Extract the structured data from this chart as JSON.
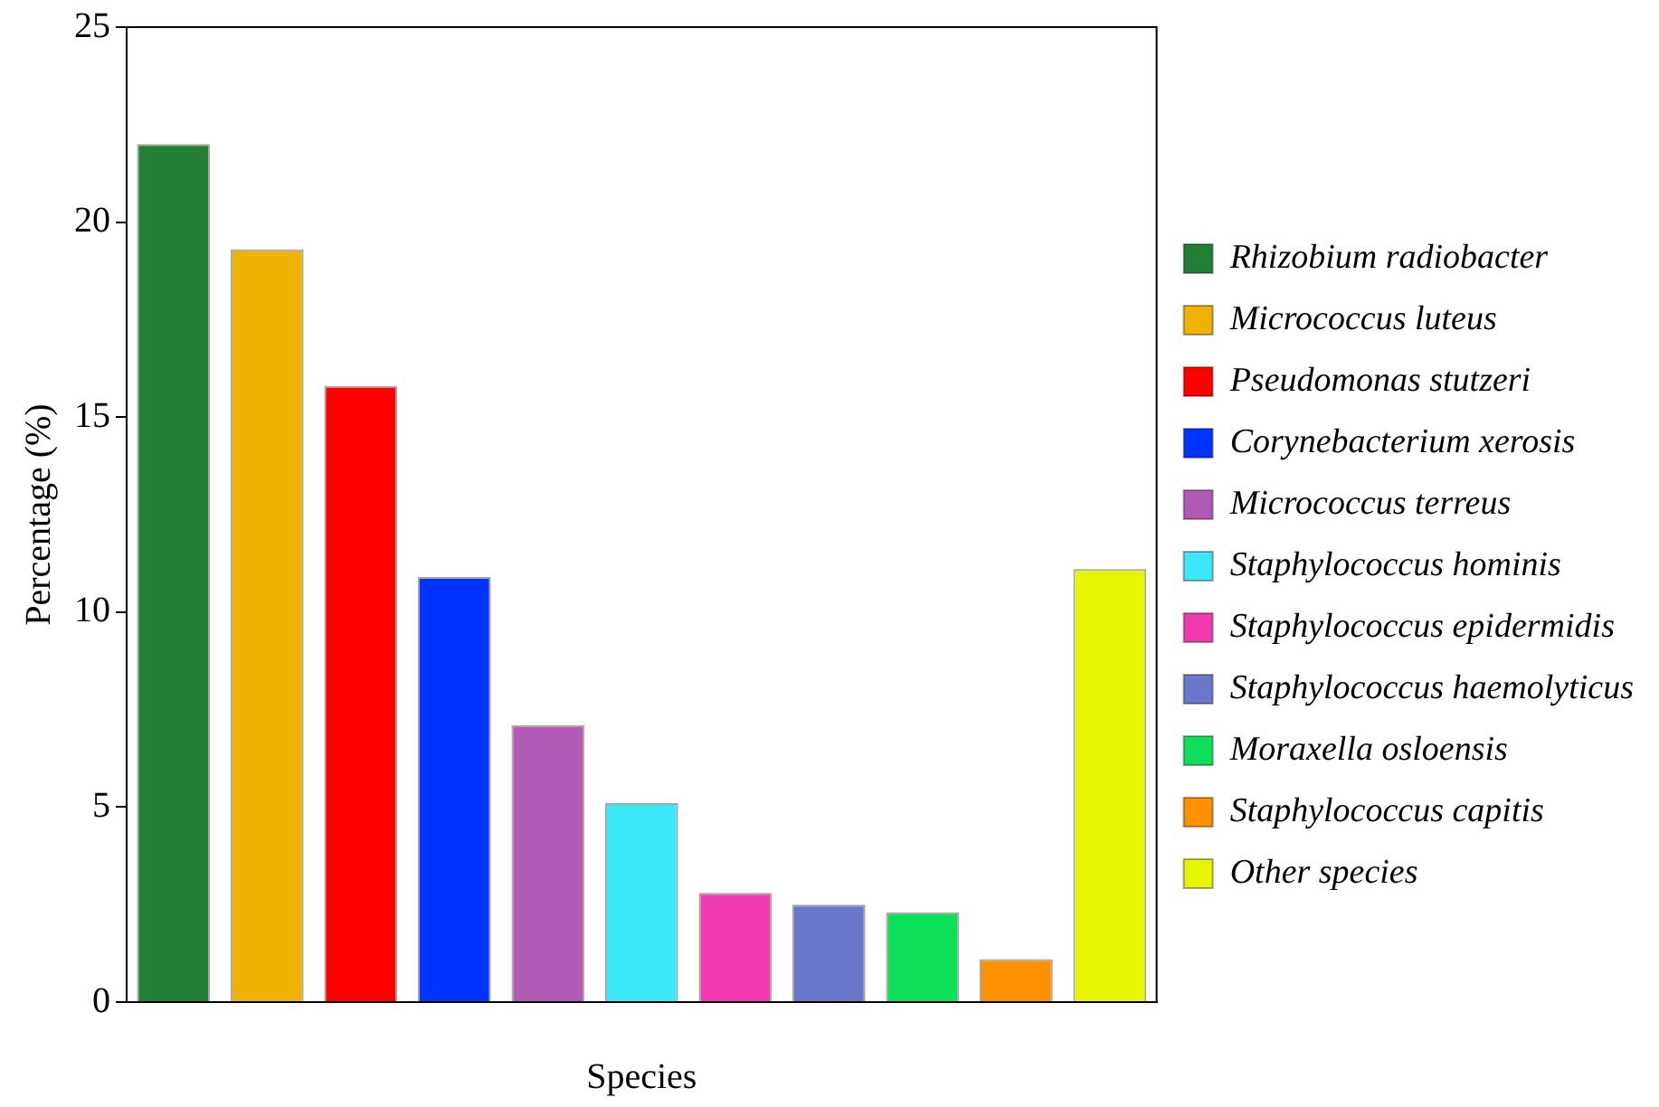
{
  "chart_data": {
    "type": "bar",
    "xlabel": "Species",
    "ylabel": "Percentage (%)",
    "stacked": true,
    "categories": [
      null,
      null,
      null,
      null,
      null,
      null,
      null,
      null,
      null,
      null,
      null
    ],
    "series": [
      {
        "name": "Rhizobium radiobacter",
        "color": "#237f35",
        "values": [
          22.0,
          null,
          null,
          null,
          null,
          null,
          null,
          null,
          null,
          null,
          null
        ]
      },
      {
        "name": "Micrococcus luteus",
        "color": "#f0b200",
        "values": [
          null,
          19.3,
          null,
          null,
          null,
          null,
          null,
          null,
          null,
          null,
          null
        ]
      },
      {
        "name": "Pseudomonas stutzeri",
        "color": "#ff0000",
        "values": [
          null,
          null,
          15.8,
          null,
          null,
          null,
          null,
          null,
          null,
          null,
          null
        ]
      },
      {
        "name": "Corynebacterium xerosis",
        "color": "#0033ff",
        "values": [
          null,
          null,
          null,
          10.9,
          null,
          null,
          null,
          null,
          null,
          null,
          null
        ]
      },
      {
        "name": "Micrococcus terreus",
        "color": "#b05ab5",
        "values": [
          null,
          null,
          null,
          null,
          7.1,
          null,
          null,
          null,
          null,
          null,
          null
        ]
      },
      {
        "name": "Staphylococcus hominis",
        "color": "#3ae8fa",
        "values": [
          null,
          null,
          null,
          null,
          null,
          5.1,
          null,
          null,
          null,
          null,
          null
        ]
      },
      {
        "name": "Staphylococcus epidermidis",
        "color": "#f23ab0",
        "values": [
          null,
          null,
          null,
          null,
          null,
          null,
          2.8,
          null,
          null,
          null,
          null
        ]
      },
      {
        "name": "Staphylococcus haemolyticus",
        "color": "#6a78cc",
        "values": [
          null,
          null,
          null,
          null,
          null,
          null,
          null,
          2.5,
          null,
          null,
          null
        ]
      },
      {
        "name": "Moraxella osloensis",
        "color": "#0fe05a",
        "values": [
          null,
          null,
          null,
          null,
          null,
          null,
          null,
          null,
          2.3,
          null,
          null
        ]
      },
      {
        "name": "Staphylococcus capitis",
        "color": "#ff9000",
        "values": [
          null,
          null,
          null,
          null,
          null,
          null,
          null,
          null,
          null,
          1.1,
          null
        ]
      },
      {
        "name": "Other species",
        "color": "#e6f500",
        "values": [
          null,
          null,
          null,
          null,
          null,
          null,
          null,
          null,
          null,
          null,
          11.1
        ]
      }
    ],
    "ylim": [
      0,
      25
    ],
    "yticks": [
      0,
      5,
      10,
      15,
      20,
      25
    ],
    "grid": false,
    "legend": "right"
  }
}
